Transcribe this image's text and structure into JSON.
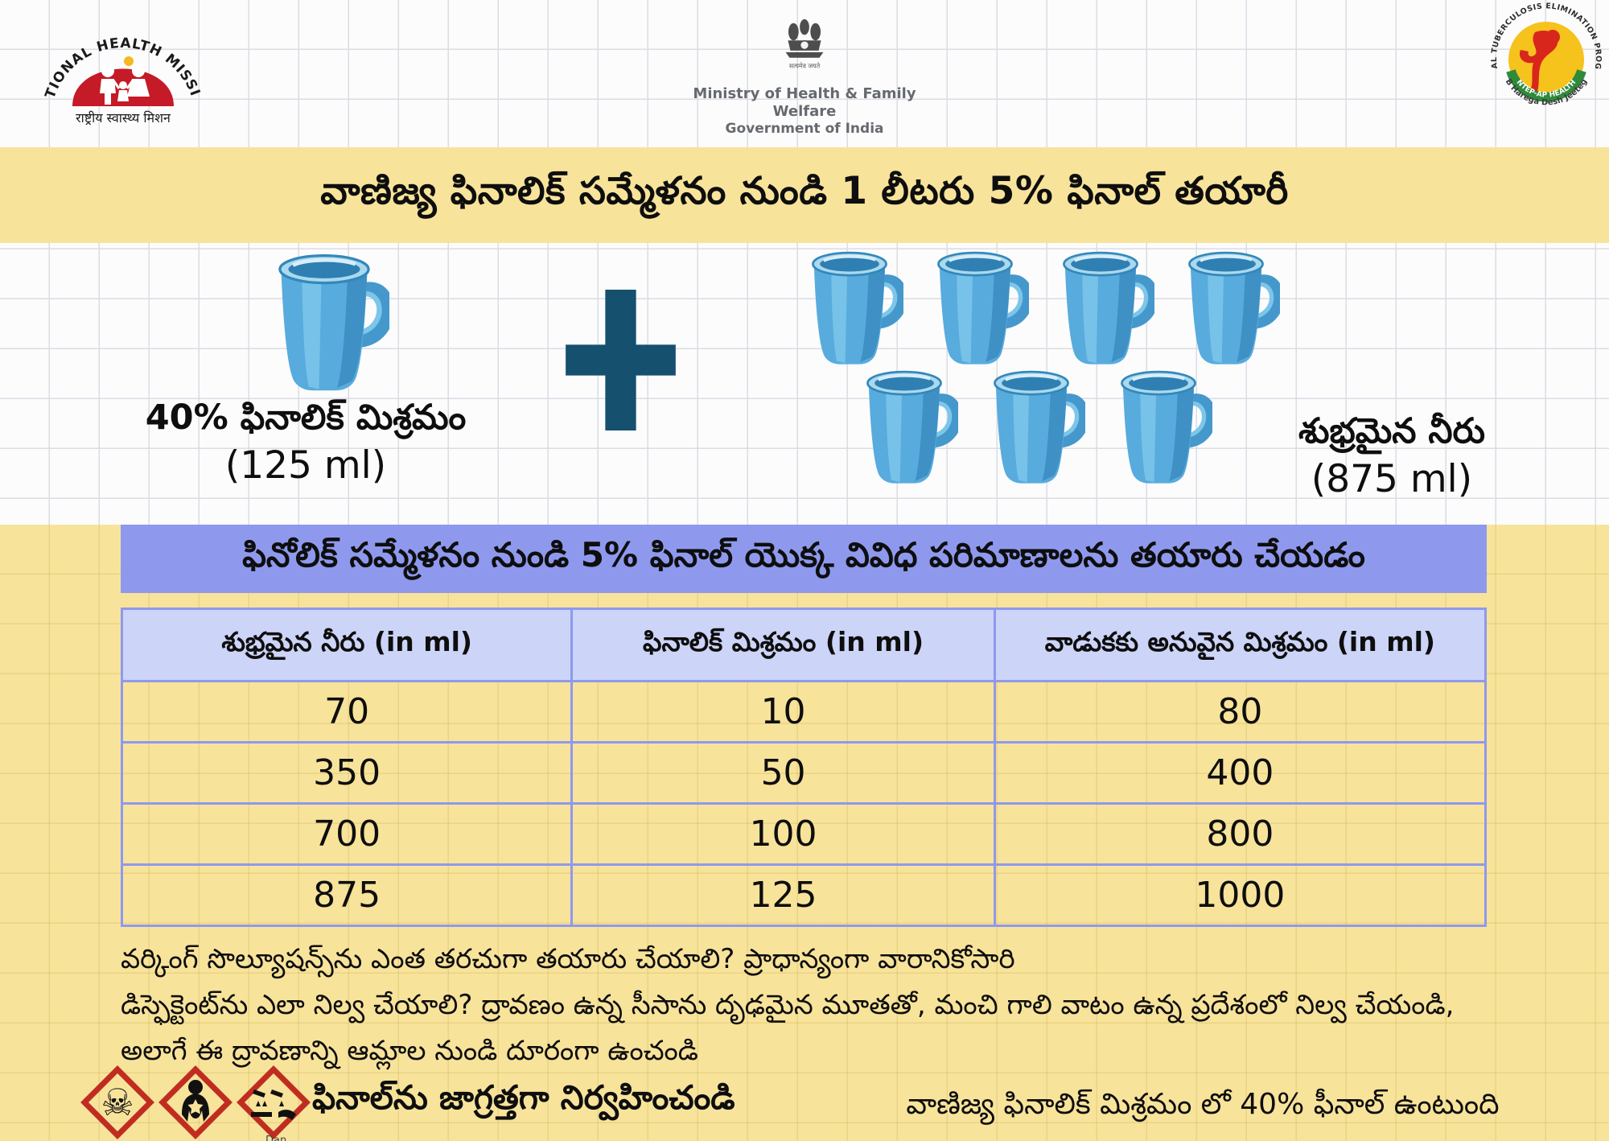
{
  "header": {
    "nhm_logo": {
      "arc_text": "NATIONAL HEALTH MISSION",
      "hindi_text": "राष्ट्रीय स्वास्थ्य मिशन"
    },
    "ministry": {
      "emblem_motto": "सत्यमेव जयते",
      "line1": "Ministry of Health & Family Welfare",
      "line2": "Government of India"
    },
    "ntep_logo": {
      "arc_text": "NATIONAL TUBERCULOSIS ELIMINATION PROGRAMME",
      "band_text": "NTEP-AP HEALTH",
      "tagline": "TB Harega Desh Jeetega"
    }
  },
  "title_banner": "వాణిజ్య ఫినాలిక్ సమ్మేళనం నుండి 1 లీటరు 5% ఫినాల్ తయారీ",
  "mixture": {
    "left_label": "40% ఫినాలిక్ మిశ్రమం",
    "left_amount": "(125 ml)",
    "right_label": "శుభ్రమైన నీరు",
    "right_amount": "(875 ml)",
    "left_mug_count": 1,
    "right_mug_rows": [
      4,
      3
    ]
  },
  "section_header": "ఫినోలిక్ సమ్మేళనం నుండి 5% ఫినాల్ యొక్క వివిధ పరిమాణాలను తయారు చేయడం",
  "table": {
    "headers": [
      "శుభ్రమైన నీరు (in ml)",
      "ఫినాలిక్ మిశ్రమం (in ml)",
      "వాడుకకు అనువైన మిశ్రమం (in ml)"
    ],
    "rows": [
      [
        "70",
        "10",
        "80"
      ],
      [
        "350",
        "50",
        "400"
      ],
      [
        "700",
        "100",
        "800"
      ],
      [
        "875",
        "125",
        "1000"
      ]
    ]
  },
  "notes": [
    "వర్కింగ్ సొల్యూషన్స్‌ను ఎంత తరచుగా తయారు చేయాలి? ప్రాధాన్యంగా వారానికోసారి",
    "డిస్ఫెక్టెంట్‌ను ఎలా నిల్వ చేయాలి? ద్రావణం ఉన్న సీసాను దృఢమైన మూతతో, మంచి గాలి వాటం ఉన్న ప్రదేశంలో నిల్వ చేయండి,",
    "అలాగే ఈ ద్రావణాన్ని ఆమ్లాల నుండి దూరంగా ఉంచండి"
  ],
  "footer": {
    "hazard_caption": "ఫినాల్‌ను జాగ్రత్తగా నిర్వహించండి",
    "hazard_icons": [
      "toxic-skull",
      "health-hazard",
      "corrosive"
    ],
    "hazard_small_text": "Dan",
    "right_note": "వాణిజ్య ఫినాలిక్ మిశ్రమం లో 40% ఫీనాల్ ఉంటుంది"
  },
  "colors": {
    "banner_yellow": "#f8e39b",
    "section_blue": "#8e99ee",
    "table_header_blue": "#ccd4f8",
    "mug_blue": "#58abdd",
    "plus_dark_blue": "#15506f",
    "hazard_red": "#c02d20",
    "nhm_red": "#c51a27",
    "ntep_yellow": "#f6c21c"
  }
}
